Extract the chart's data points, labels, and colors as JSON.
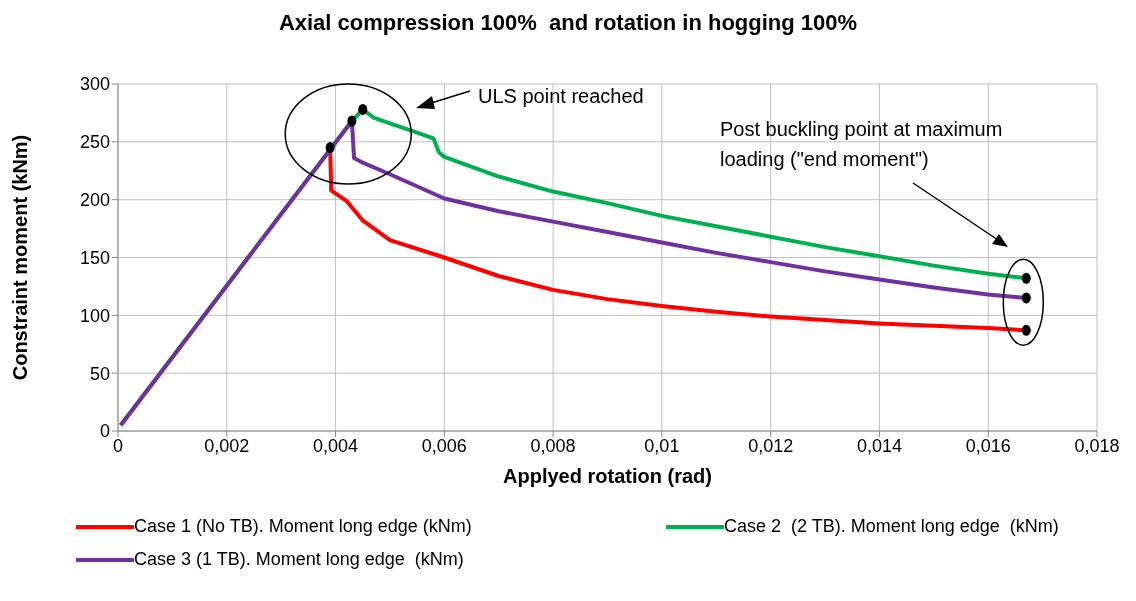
{
  "chart_data": {
    "type": "line",
    "title": "Axial compression 100%  and rotation in hogging 100%",
    "xlabel": "Applyed rotation (rad)",
    "ylabel": "Constraint moment (kNm)",
    "xlim": [
      0,
      0.018
    ],
    "ylim": [
      0,
      300
    ],
    "xticks": [
      0,
      {
        "value": 0.002,
        "label": "0,002"
      },
      {
        "value": 0.004,
        "label": "0,004"
      },
      {
        "value": 0.006,
        "label": "0,006"
      },
      {
        "value": 0.008,
        "label": "0,008"
      },
      {
        "value": 0.01,
        "label": "0,01"
      },
      {
        "value": 0.012,
        "label": "0,012"
      },
      {
        "value": 0.014,
        "label": "0,014"
      },
      {
        "value": 0.016,
        "label": "0,016"
      },
      {
        "value": 0.018,
        "label": "0,018"
      }
    ],
    "yticks": [
      0,
      50,
      100,
      150,
      200,
      250,
      300
    ],
    "grid": true,
    "legend": "bottom",
    "marker": "none",
    "line_style": "solid",
    "annotations": [
      "ULS point reached",
      "Post buckling point at maximum loading (\"end moment\")"
    ],
    "series": [
      {
        "name": "Case 1 (No TB). Moment long edge (kNm)",
        "color": "#ff0000",
        "x": [
          0.0039,
          0.00392,
          0.0042,
          0.0045,
          0.005,
          0.006,
          0.007,
          0.008,
          0.009,
          0.01,
          0.011,
          0.012,
          0.013,
          0.014,
          0.015,
          0.016,
          0.0167
        ],
        "values": [
          245,
          208,
          199,
          182,
          165,
          150,
          134,
          122,
          114,
          108,
          103,
          99,
          96,
          93,
          91,
          89,
          87
        ]
      },
      {
        "name": "Case 2  (2 TB). Moment long edge  (kNm)",
        "color": "#00b050",
        "x": [
          5e-05,
          0.0043,
          0.0045,
          0.0047,
          0.005,
          0.0055,
          0.0058,
          0.0059,
          0.006,
          0.007,
          0.008,
          0.009,
          0.01,
          0.011,
          0.012,
          0.013,
          0.014,
          0.015,
          0.016,
          0.0167
        ],
        "values": [
          5,
          268,
          278,
          271,
          266,
          258,
          253,
          241,
          237,
          220,
          207,
          197,
          186,
          177,
          168,
          159,
          151,
          143,
          136,
          132
        ]
      },
      {
        "name": "Case 3 (1 TB). Moment long edge  (kNm)",
        "color": "#7030a0",
        "x": [
          5e-05,
          0.0043,
          0.00434,
          0.0045,
          0.005,
          0.006,
          0.007,
          0.008,
          0.009,
          0.01,
          0.011,
          0.012,
          0.013,
          0.014,
          0.015,
          0.016,
          0.0167
        ],
        "values": [
          5,
          268,
          236,
          232,
          222,
          201,
          190,
          181,
          172,
          163,
          154,
          146,
          138,
          131,
          124,
          118,
          115
        ]
      }
    ]
  }
}
